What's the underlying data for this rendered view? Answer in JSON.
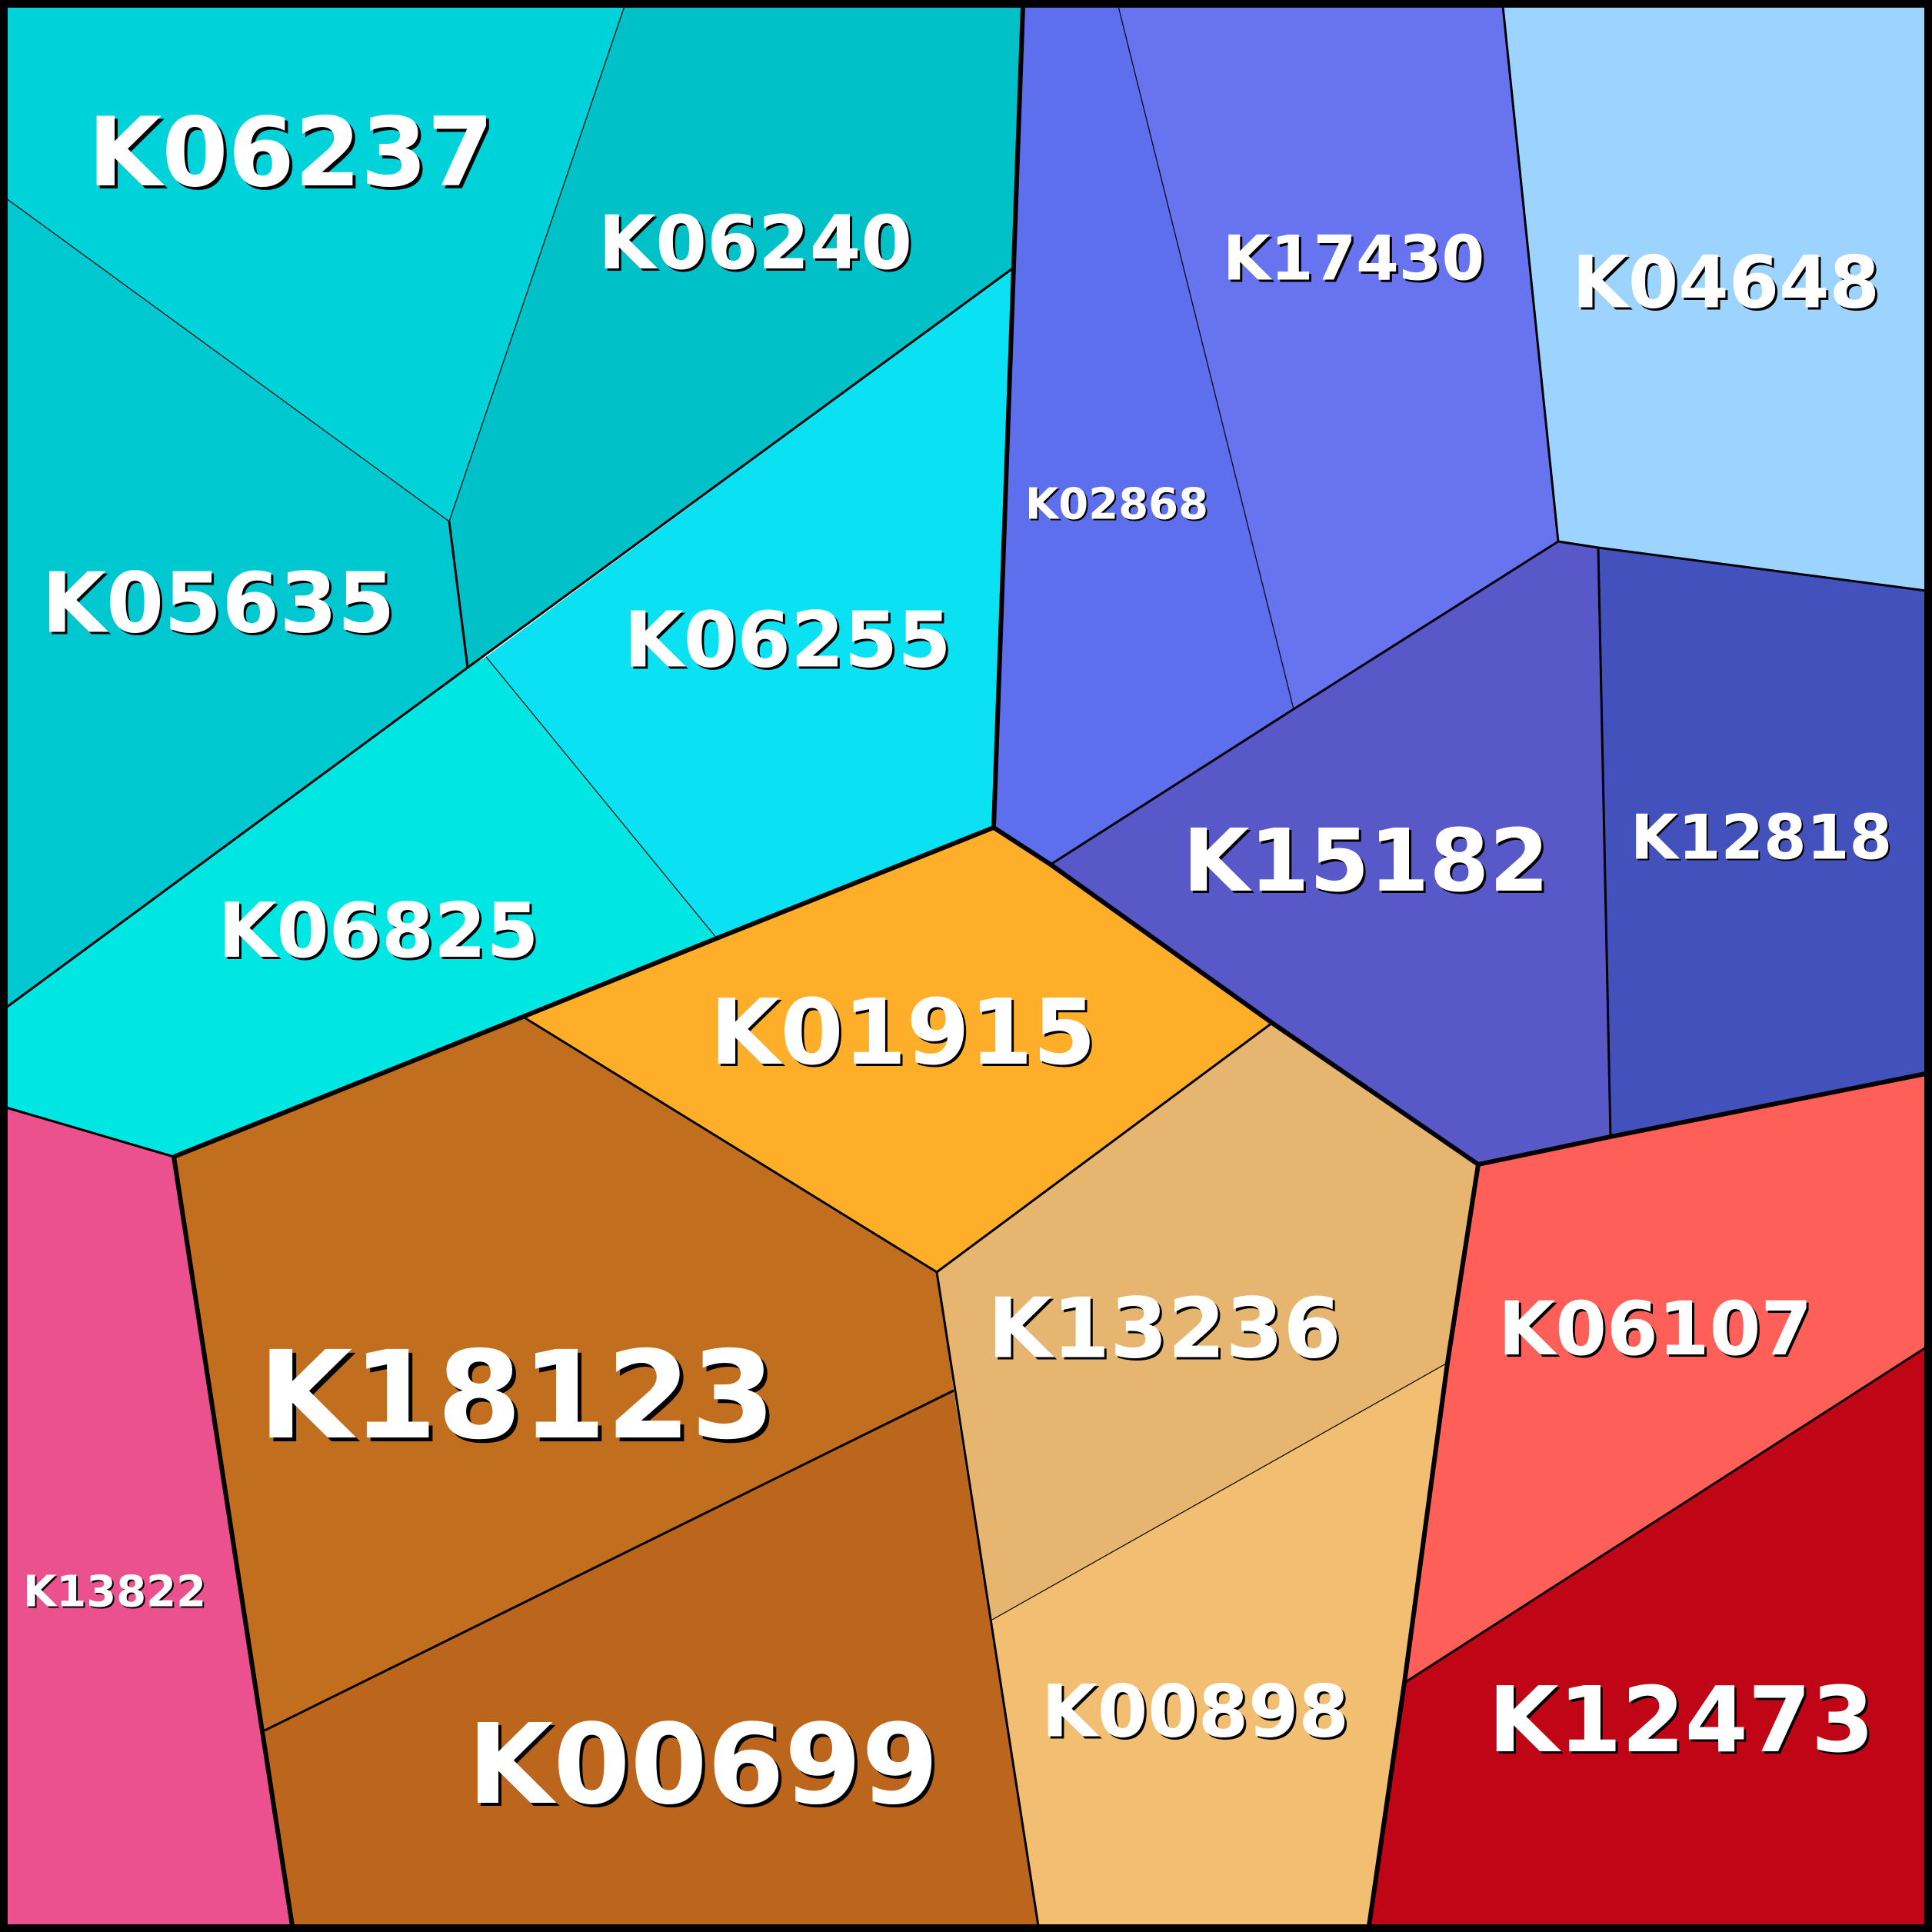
{
  "cells": [
    {
      "label": "K06237",
      "color": "#00D2DA"
    },
    {
      "label": "K06240",
      "color": "#00C0C8"
    },
    {
      "label": "K05635",
      "color": "#00C8D1"
    },
    {
      "label": "K06255",
      "color": "#0AE2F4"
    },
    {
      "label": "K06825",
      "color": "#00E6E3"
    },
    {
      "label": "K02868",
      "color": "#5E6FEE"
    },
    {
      "label": "K17430",
      "color": "#6773EF"
    },
    {
      "label": "K04648",
      "color": "#9DD4FF"
    },
    {
      "label": "K15182",
      "color": "#5858C8"
    },
    {
      "label": "K12818",
      "color": "#4251BC"
    },
    {
      "label": "K01915",
      "color": "#FFAE2A"
    },
    {
      "label": "K18123",
      "color": "#C16E1F"
    },
    {
      "label": "K00699",
      "color": "#BC651D"
    },
    {
      "label": "K13236",
      "color": "#E6B56F"
    },
    {
      "label": "K00898",
      "color": "#F2BE72"
    },
    {
      "label": "K06107",
      "color": "#FF5F59"
    },
    {
      "label": "K12473",
      "color": "#C00616"
    },
    {
      "label": "K13822",
      "color": "#EC518F"
    }
  ]
}
